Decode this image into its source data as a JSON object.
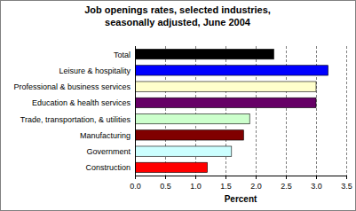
{
  "chart_data": {
    "type": "bar",
    "orientation": "horizontal",
    "title": "Job openings rates, selected industries,",
    "subtitle": "seasonally adjusted, June 2004",
    "x_label": "Percent",
    "categories": [
      "Total",
      "Leisure & hospitality",
      "Professional & business services",
      "Education & health services",
      "Trade, transportation, & utilities",
      "Manufacturing",
      "Government",
      "Construction"
    ],
    "values": [
      2.3,
      3.2,
      3.0,
      3.0,
      1.9,
      1.8,
      1.6,
      1.2
    ],
    "colors": [
      "#000000",
      "#0000ff",
      "#ffffcc",
      "#660066",
      "#ccffcc",
      "#800000",
      "#ccffff",
      "#ff0000"
    ],
    "xlim": [
      0,
      3.5
    ],
    "xticks": [
      {
        "value": 0,
        "label": "0.0"
      },
      0.5,
      {
        "value": 1,
        "label": "1.0"
      },
      1.5,
      {
        "value": 2,
        "label": "2.0"
      },
      2.5,
      {
        "value": 3,
        "label": "3.0"
      },
      3.5
    ],
    "grid": true
  }
}
